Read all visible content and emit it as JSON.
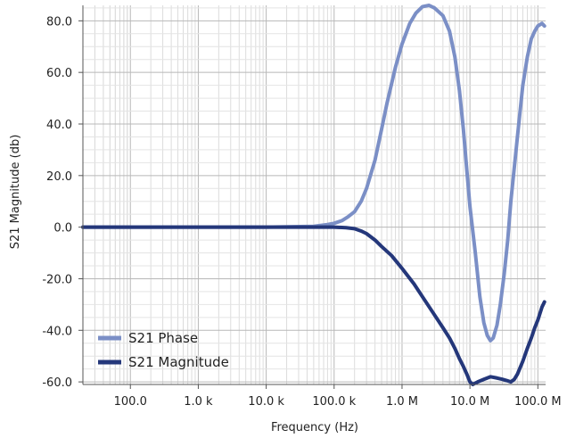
{
  "chart_data": {
    "type": "line",
    "title": "",
    "xlabel": "Frequency (Hz)",
    "ylabel": "S21 Magnitude (db)",
    "xscale": "log",
    "xlim": [
      20,
      130000000
    ],
    "ylim": [
      -61,
      86
    ],
    "grid": true,
    "legend_position": "bottom-left",
    "x_ticks": [
      {
        "value": 100,
        "label": "100.0"
      },
      {
        "value": 1000,
        "label": "1.0 k"
      },
      {
        "value": 10000,
        "label": "10.0 k"
      },
      {
        "value": 100000,
        "label": "100.0 k"
      },
      {
        "value": 1000000,
        "label": "1.0 M"
      },
      {
        "value": 10000000,
        "label": "10.0 M"
      },
      {
        "value": 100000000,
        "label": "100.0 M"
      }
    ],
    "y_ticks": [
      {
        "value": 80,
        "label": "80.0"
      },
      {
        "value": 60,
        "label": "60.0"
      },
      {
        "value": 40,
        "label": "40.0"
      },
      {
        "value": 20,
        "label": "20.0"
      },
      {
        "value": 0,
        "label": "0.0"
      },
      {
        "value": -20,
        "label": "-20.0"
      },
      {
        "value": -40,
        "label": "-40.0"
      },
      {
        "value": -60,
        "label": "-60.0"
      }
    ],
    "series": [
      {
        "name": "S21 Phase",
        "color": "#7b8fc6",
        "x": [
          20,
          1000,
          10000,
          50000,
          80000,
          100000,
          130000,
          160000,
          200000,
          250000,
          300000,
          400000,
          500000,
          600000,
          800000,
          1000000,
          1300000,
          1600000,
          2000000,
          2500000,
          3000000,
          4000000,
          5000000,
          6000000,
          7000000,
          8000000,
          9000000,
          10000000,
          12000000,
          14000000,
          16000000,
          18000000,
          20000000,
          22000000,
          25000000,
          28000000,
          32000000,
          36000000,
          40000000,
          50000000,
          60000000,
          70000000,
          80000000,
          90000000,
          100000000,
          115000000,
          125000000
        ],
        "y": [
          0,
          0,
          0,
          0.3,
          1,
          1.5,
          2.5,
          4,
          6,
          10,
          15,
          26,
          38,
          48,
          62,
          71,
          79,
          83,
          85.5,
          86,
          85,
          82,
          76,
          66,
          53,
          38,
          22,
          8,
          -10,
          -27,
          -37,
          -42,
          -44,
          -43,
          -38,
          -30,
          -18,
          -5,
          10,
          35,
          55,
          66,
          73,
          76,
          78,
          79,
          78
        ]
      },
      {
        "name": "S21 Magnitude",
        "color": "#24377a",
        "x": [
          20,
          1000,
          10000,
          100000,
          150000,
          200000,
          250000,
          300000,
          400000,
          500000,
          700000,
          1000000,
          1500000,
          2000000,
          3000000,
          4000000,
          5000000,
          6000000,
          7000000,
          8000000,
          9000000,
          10000000,
          11000000,
          13000000,
          16000000,
          20000000,
          25000000,
          30000000,
          35000000,
          40000000,
          45000000,
          50000000,
          60000000,
          70000000,
          80000000,
          90000000,
          100000000,
          115000000,
          125000000
        ],
        "y": [
          0,
          0,
          0,
          0,
          -0.2,
          -0.6,
          -1.5,
          -2.5,
          -5,
          -7.5,
          -11,
          -16,
          -22,
          -27,
          -34,
          -39,
          -43,
          -47,
          -51,
          -54,
          -57,
          -60,
          -61,
          -60,
          -59,
          -58,
          -58.5,
          -59,
          -59.5,
          -60,
          -59,
          -57,
          -52,
          -47,
          -43,
          -39,
          -36,
          -31,
          -29
        ]
      }
    ]
  }
}
